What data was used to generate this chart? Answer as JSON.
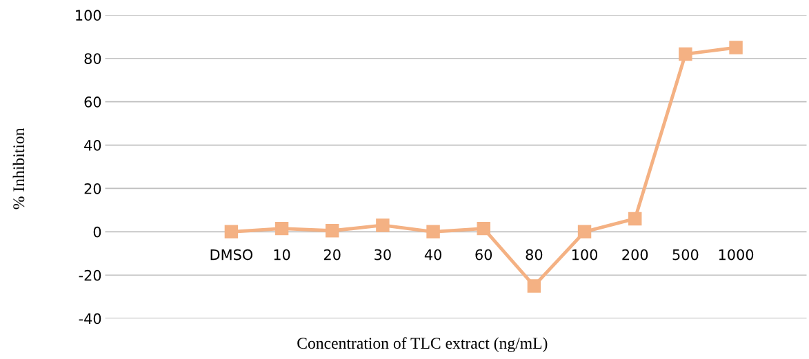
{
  "chart_data": {
    "type": "line",
    "xlabel": "Concentration of TLC extract (ng/mL)",
    "ylabel": "% Inhibition",
    "categories": [
      "DMSO",
      "10",
      "20",
      "30",
      "40",
      "60",
      "80",
      "100",
      "200",
      "500",
      "1000"
    ],
    "series": [
      {
        "color": "#f4b183",
        "values": [
          0,
          1.5,
          0.5,
          3,
          0,
          1.5,
          -25,
          0,
          6,
          82,
          85
        ]
      }
    ],
    "ylim": [
      -40,
      100
    ],
    "yticks": [
      -40,
      -20,
      0,
      20,
      40,
      60,
      80,
      100
    ],
    "grid": "y",
    "marker": "square",
    "line_style": "solid"
  }
}
